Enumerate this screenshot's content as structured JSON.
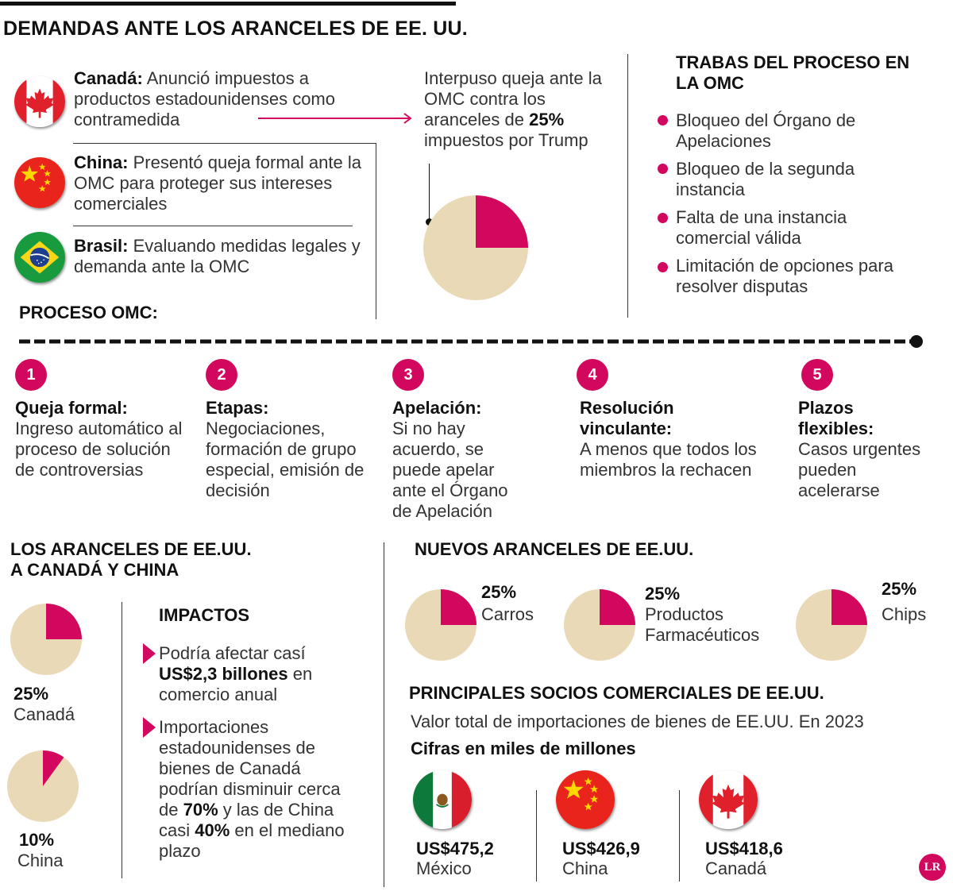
{
  "title": "DEMANDAS ANTE LOS ARANCELES DE EE. UU.",
  "countries": [
    {
      "name": "Canadá:",
      "text": "Anunció impuestos a productos estadounidenses como contramedida",
      "flag": "canada-flag-icon"
    },
    {
      "name": "China:",
      "text": "Presentó queja formal ante la OMC para proteger sus intereses comerciales",
      "flag": "china-flag-icon"
    },
    {
      "name": "Brasil:",
      "text": "Evaluando medidas legales  y demanda ante la OMC",
      "flag": "brazil-flag-icon"
    }
  ],
  "complaint": {
    "pre": "Interpuso queja ante la OMC contra los aranceles de ",
    "bold": "25%",
    "post": " impuestos por Trump",
    "share": 25
  },
  "trabas": {
    "title": "TRABAS DEL PROCESO EN LA OMC",
    "items": [
      "Bloqueo del Órgano de Apelaciones",
      "Bloqueo de la segunda instancia",
      "Falta de una instancia comercial válida",
      "Limitación de opciones para resolver disputas"
    ]
  },
  "proceso": {
    "title": "PROCESO OMC:",
    "steps": [
      {
        "num": "1",
        "title": "Queja formal:",
        "desc": "Ingreso automático al proceso de solución de controversias"
      },
      {
        "num": "2",
        "title": "Etapas:",
        "desc": "Negociaciones, formación de grupo especial, emisión de decisión"
      },
      {
        "num": "3",
        "title": "Apelación:",
        "desc": "Si no hay acuerdo, se puede apelar ante el Órgano de Apelación"
      },
      {
        "num": "4",
        "title": "Resolución vinculante:",
        "desc": "A menos que todos los miembros la rechacen"
      },
      {
        "num": "5",
        "title": "Plazos flexibles:",
        "desc": "Casos urgentes pueden acelerarse"
      }
    ]
  },
  "aranceles": {
    "title": "LOS ARANCELES DE EE.UU. A CANADÁ Y CHINA",
    "pies": [
      {
        "value": "25%",
        "label": "Canadá",
        "share": 25
      },
      {
        "value": "10%",
        "label": "China",
        "share": 10
      }
    ]
  },
  "impactos": {
    "title": "IMPACTOS",
    "items": [
      {
        "parts": [
          "Podría afectar casí ",
          "US$2,3 billones",
          " en comercio anual"
        ]
      },
      {
        "parts": [
          "Importaciones estadounidenses de bienes de Canadá podrían disminuir cerca de ",
          "70%",
          " y las de China casi ",
          "40%",
          " en el mediano plazo"
        ]
      }
    ]
  },
  "nuevos": {
    "title": "NUEVOS ARANCELES DE EE.UU.",
    "pies": [
      {
        "value": "25%",
        "label": "Carros",
        "share": 25
      },
      {
        "value": "25%",
        "label": "Productos Farmacéuticos",
        "share": 25
      },
      {
        "value": "25%",
        "label": "Chips",
        "share": 25
      }
    ]
  },
  "socios": {
    "title": "PRINCIPALES SOCIOS COMERCIALES DE EE.UU.",
    "subtitle": "Valor total de importaciones de bienes de EE.UU. En 2023",
    "units": "Cifras en miles de millones",
    "items": [
      {
        "value": "US$475,2",
        "label": "México",
        "flag": "mexico-flag-icon"
      },
      {
        "value": "US$426,9",
        "label": "China",
        "flag": "china-flag-icon"
      },
      {
        "value": "US$418,6",
        "label": "Canadá",
        "flag": "canada-flag-icon"
      }
    ]
  },
  "logo": "LR",
  "colors": {
    "accent": "#d1085e",
    "pie_base": "#ead9b6",
    "text": "#222222"
  }
}
